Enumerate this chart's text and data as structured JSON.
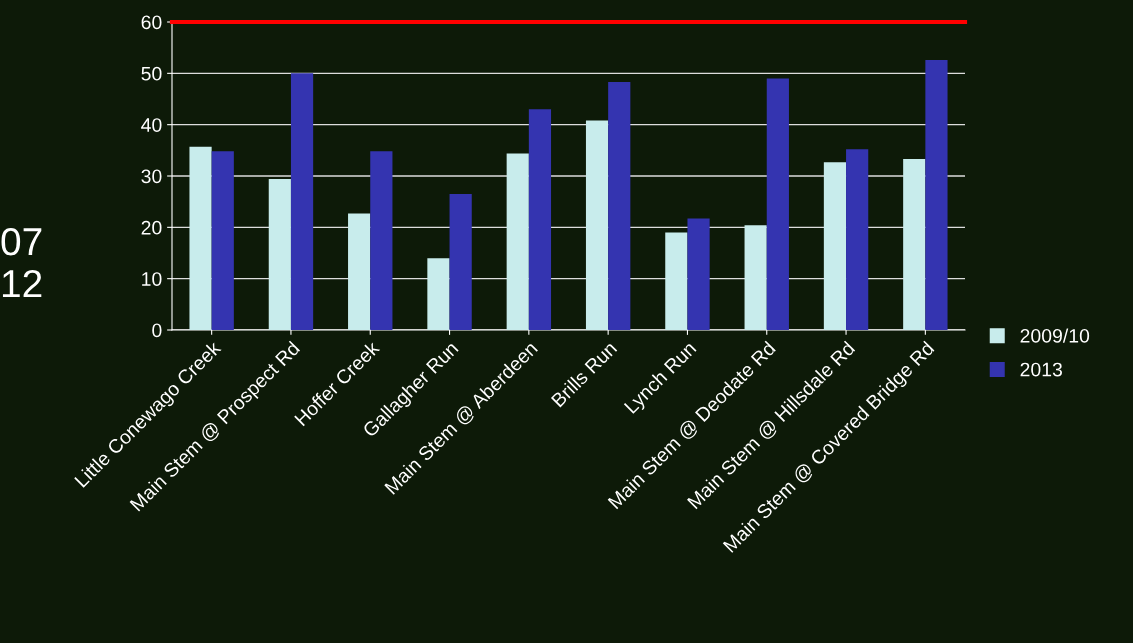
{
  "chart_data": {
    "type": "bar",
    "categories": [
      "Little Conewago Creek",
      "Main Stem @ Prospect Rd",
      "Hoffer Creek",
      "Gallagher Run",
      "Main Stem @ Aberdeen",
      "Brills Run",
      "Lynch Run",
      "Main Stem @ Deodate Rd",
      "Main Stem @ Hillsdale Rd",
      "Main Stem @ Covered Bridge Rd"
    ],
    "series": [
      {
        "name": "2009/10",
        "color": "#c8ecec",
        "values": [
          35.7,
          29.4,
          22.7,
          14.0,
          34.4,
          40.8,
          19.0,
          20.4,
          32.7,
          33.3
        ]
      },
      {
        "name": "2013",
        "color": "#3434b0",
        "values": [
          34.8,
          50.0,
          34.8,
          26.5,
          43.0,
          48.3,
          21.7,
          49.0,
          35.2,
          52.6
        ]
      }
    ],
    "ylim": [
      0,
      60
    ],
    "yticks": [
      0,
      10,
      20,
      30,
      40,
      50,
      60
    ],
    "grid": "y",
    "legend": "right",
    "ref_lines": [
      {
        "axis": "y",
        "value": 60,
        "color": "#ff0000"
      }
    ],
    "annotations": [
      "07",
      "12"
    ]
  }
}
